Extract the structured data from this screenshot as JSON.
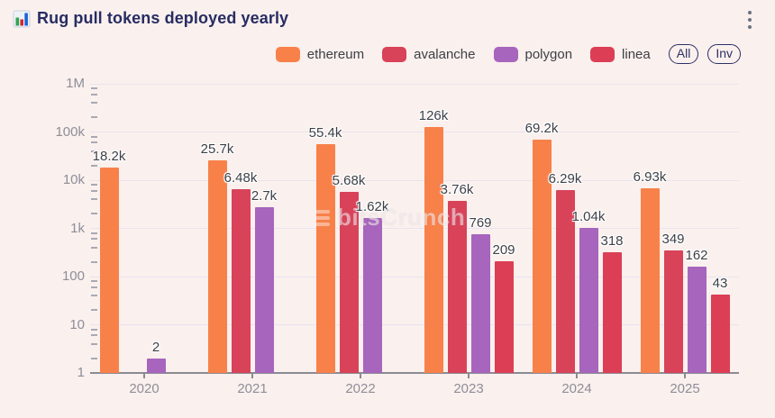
{
  "header": {
    "title": "Rug pull tokens deployed yearly"
  },
  "legend": {
    "items": [
      {
        "label": "ethereum",
        "color": "#f8814a"
      },
      {
        "label": "avalanche",
        "color": "#d8435a"
      },
      {
        "label": "polygon",
        "color": "#a765bd"
      },
      {
        "label": "linea",
        "color": "#dc3e55"
      }
    ],
    "buttons": [
      {
        "label": "All"
      },
      {
        "label": "Inv"
      }
    ]
  },
  "watermark": {
    "text": "bitsCrunch"
  },
  "chart_data": {
    "type": "bar",
    "scale": "log",
    "title": "Rug pull tokens deployed yearly",
    "categories": [
      "2020",
      "2021",
      "2022",
      "2023",
      "2024",
      "2025"
    ],
    "series": [
      {
        "name": "ethereum",
        "color": "#f8814a",
        "values": [
          18200,
          25700,
          55400,
          126000,
          69200,
          6930
        ],
        "labels": [
          "18.2k",
          "25.7k",
          "55.4k",
          "126k",
          "69.2k",
          "6.93k"
        ]
      },
      {
        "name": "avalanche",
        "color": "#d8435a",
        "values": [
          null,
          6480,
          5680,
          3760,
          6290,
          349
        ],
        "labels": [
          "",
          "6.48k",
          "5.68k",
          "3.76k",
          "6.29k",
          "349"
        ]
      },
      {
        "name": "polygon",
        "color": "#a765bd",
        "values": [
          2,
          2700,
          1620,
          769,
          1040,
          162
        ],
        "labels": [
          "2",
          "2.7k",
          "1.62k",
          "769",
          "1.04k",
          "162"
        ]
      },
      {
        "name": "linea",
        "color": "#dc3e55",
        "values": [
          null,
          null,
          null,
          209,
          318,
          43
        ],
        "labels": [
          "",
          "",
          "",
          "209",
          "318",
          "43"
        ]
      }
    ],
    "yticks": [
      "1M",
      "100k",
      "10k",
      "1k",
      "100",
      "10",
      "1"
    ],
    "ytick_values": [
      1000000,
      100000,
      10000,
      1000,
      100,
      10,
      1
    ],
    "ylim": [
      1,
      1000000
    ],
    "grid": true,
    "legend_position": "top-right"
  }
}
